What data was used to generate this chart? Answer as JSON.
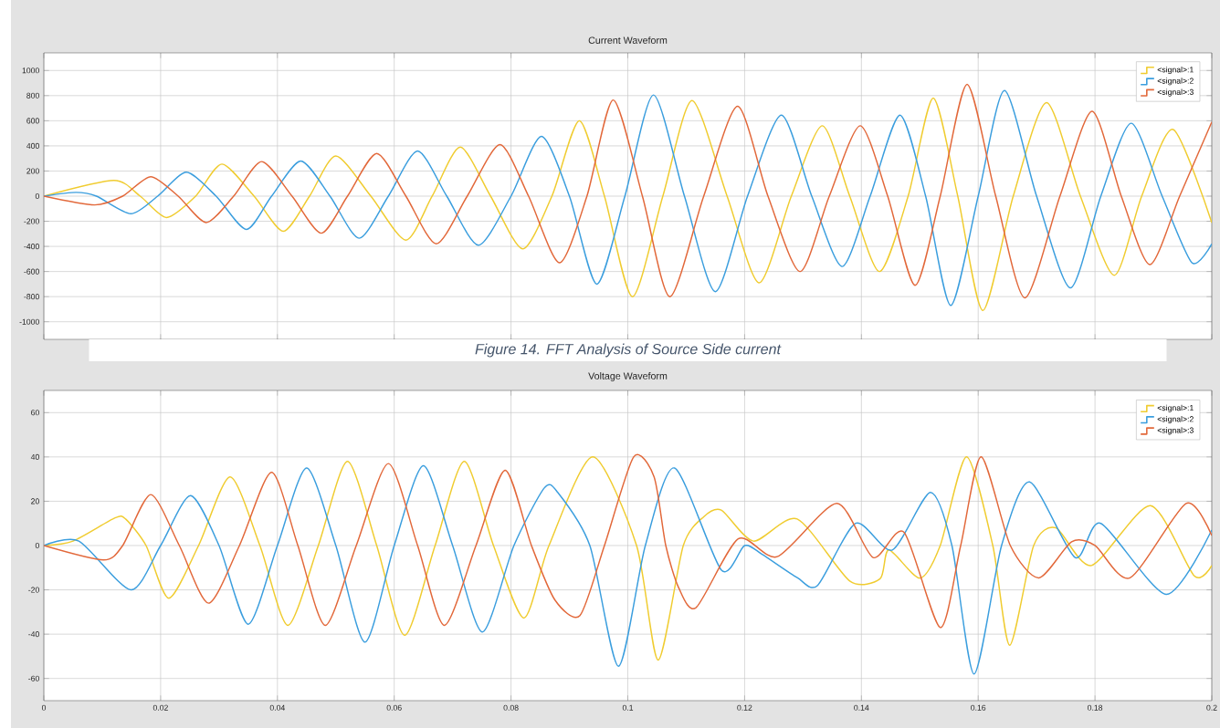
{
  "chart_data": [
    {
      "type": "line",
      "title": "Current Waveform",
      "xlim": [
        0,
        0.2
      ],
      "ylim": [
        -1140,
        1140
      ],
      "xticks": [
        0,
        0.02,
        0.04,
        0.06,
        0.08,
        0.1,
        0.12,
        0.14,
        0.16,
        0.18,
        0.2
      ],
      "yticks": [
        -1000,
        -800,
        -600,
        -400,
        -200,
        0,
        200,
        400,
        600,
        800,
        1000
      ],
      "grid": true,
      "legend": "top right",
      "tick_labels": "y",
      "series": [
        {
          "name": "<signal>:1",
          "color": "#f0cc30",
          "x": [
            0,
            0.012,
            0.0165,
            0.021,
            0.026,
            0.0305,
            0.036,
            0.041,
            0.0455,
            0.05,
            0.056,
            0.062,
            0.0665,
            0.0713,
            0.0765,
            0.082,
            0.087,
            0.0917,
            0.096,
            0.1008,
            0.106,
            0.111,
            0.117,
            0.1225,
            0.128,
            0.1333,
            0.138,
            0.1431,
            0.148,
            0.1523,
            0.1565,
            0.1608,
            0.166,
            0.1717,
            0.1775,
            0.1833,
            0.188,
            0.1934,
            0.2
          ],
          "values": [
            0,
            125,
            0,
            -170,
            0,
            255,
            0,
            -280,
            0,
            320,
            0,
            -350,
            0,
            390,
            0,
            -420,
            0,
            600,
            0,
            -800,
            0,
            760,
            0,
            -690,
            0,
            560,
            0,
            -600,
            0,
            780,
            0,
            -910,
            0,
            745,
            0,
            -630,
            0,
            530,
            -210
          ]
        },
        {
          "name": "<signal>:2",
          "color": "#3b9ede",
          "x": [
            0,
            0.0055,
            0.009,
            0.0149,
            0.0195,
            0.0244,
            0.0295,
            0.0347,
            0.039,
            0.044,
            0.049,
            0.054,
            0.059,
            0.064,
            0.069,
            0.0744,
            0.08,
            0.0852,
            0.09,
            0.0947,
            0.0995,
            0.1044,
            0.1097,
            0.115,
            0.1205,
            0.1263,
            0.1315,
            0.1367,
            0.1415,
            0.1466,
            0.151,
            0.1553,
            0.16,
            0.1645,
            0.17,
            0.1758,
            0.181,
            0.1862,
            0.1915,
            0.1966,
            0.2
          ],
          "values": [
            0,
            30,
            0,
            -140,
            0,
            190,
            0,
            -265,
            0,
            280,
            0,
            -335,
            0,
            360,
            0,
            -390,
            0,
            475,
            0,
            -700,
            0,
            805,
            0,
            -760,
            0,
            645,
            0,
            -560,
            0,
            645,
            0,
            -870,
            0,
            840,
            0,
            -730,
            0,
            580,
            0,
            -530,
            -380
          ]
        },
        {
          "name": "<signal>:3",
          "color": "#e2683a",
          "x": [
            0,
            0.0087,
            0.0135,
            0.0183,
            0.023,
            0.0278,
            0.0325,
            0.0373,
            0.0425,
            0.0475,
            0.052,
            0.057,
            0.062,
            0.0672,
            0.0725,
            0.0781,
            0.083,
            0.0883,
            0.093,
            0.0975,
            0.1025,
            0.1072,
            0.113,
            0.1188,
            0.124,
            0.1295,
            0.1345,
            0.1398,
            0.1445,
            0.1492,
            0.1535,
            0.1581,
            0.163,
            0.168,
            0.174,
            0.1795,
            0.1845,
            0.1894,
            0.1945,
            0.2
          ],
          "values": [
            0,
            -70,
            0,
            155,
            0,
            -210,
            0,
            275,
            0,
            -295,
            0,
            340,
            0,
            -380,
            0,
            410,
            0,
            -530,
            0,
            765,
            0,
            -800,
            0,
            715,
            0,
            -600,
            0,
            560,
            0,
            -710,
            0,
            890,
            0,
            -810,
            0,
            675,
            0,
            -545,
            0,
            590
          ]
        }
      ]
    },
    {
      "type": "line",
      "title": "Voltage Waveform",
      "xlim": [
        0,
        0.2
      ],
      "ylim": [
        -70,
        70
      ],
      "xticks": [
        0,
        0.02,
        0.04,
        0.06,
        0.08,
        0.1,
        0.12,
        0.14,
        0.16,
        0.18,
        0.2
      ],
      "yticks": [
        -60,
        -40,
        -20,
        0,
        20,
        40,
        60
      ],
      "grid": true,
      "legend": "top right",
      "annotations": [
        "Figure 14. FFT Analysis of Source Side current"
      ],
      "series": [
        {
          "name": "<signal>:1",
          "color": "#f0cc30",
          "x": [
            0,
            0.005,
            0.0122,
            0.014,
            0.0175,
            0.0214,
            0.0265,
            0.0319,
            0.037,
            0.0418,
            0.047,
            0.052,
            0.057,
            0.0618,
            0.067,
            0.072,
            0.077,
            0.0822,
            0.0865,
            0.094,
            0.1015,
            0.1052,
            0.1095,
            0.113,
            0.116,
            0.1215,
            0.129,
            0.138,
            0.1432,
            0.1447,
            0.15,
            0.1535,
            0.158,
            0.1625,
            0.1654,
            0.1695,
            0.1733,
            0.1794,
            0.1895,
            0.197,
            0.2
          ],
          "values": [
            0,
            2,
            12.5,
            12,
            0,
            -23.8,
            0,
            31,
            0,
            -36,
            0,
            38,
            0,
            -40.5,
            0,
            38,
            0,
            -32.7,
            0,
            40,
            0,
            -51.7,
            0,
            13,
            16,
            2,
            12,
            -16,
            -15,
            -2,
            -14.7,
            0,
            40,
            0,
            -45,
            0,
            8,
            -9,
            18,
            -13.7,
            -9
          ]
        },
        {
          "name": "<signal>:2",
          "color": "#3b9ede",
          "x": [
            0,
            0.006,
            0.0149,
            0.02,
            0.0251,
            0.03,
            0.035,
            0.04,
            0.045,
            0.05,
            0.055,
            0.06,
            0.065,
            0.07,
            0.0751,
            0.0805,
            0.0857,
            0.088,
            0.0935,
            0.0984,
            0.103,
            0.108,
            0.116,
            0.12,
            0.123,
            0.129,
            0.1325,
            0.139,
            0.1453,
            0.1518,
            0.1555,
            0.1593,
            0.164,
            0.1688,
            0.1766,
            0.181,
            0.1922,
            0.2
          ],
          "values": [
            0,
            2,
            -20,
            0,
            22.5,
            0,
            -35.5,
            0,
            35,
            0,
            -43.6,
            0,
            36,
            0,
            -39,
            0,
            26,
            24,
            0,
            -54.5,
            0,
            35,
            -11,
            0,
            -4,
            -14.5,
            -18,
            10,
            -2,
            24,
            0,
            -58,
            0,
            28.7,
            -5.4,
            10,
            -22,
            7
          ]
        },
        {
          "name": "<signal>:3",
          "color": "#e2683a",
          "x": [
            0,
            0.0102,
            0.0135,
            0.0183,
            0.0232,
            0.0282,
            0.0335,
            0.039,
            0.0435,
            0.0482,
            0.0535,
            0.059,
            0.064,
            0.0686,
            0.074,
            0.079,
            0.0835,
            0.0875,
            0.0918,
            0.096,
            0.101,
            0.1045,
            0.1065,
            0.1087,
            0.1117,
            0.1189,
            0.1256,
            0.1358,
            0.142,
            0.1473,
            0.1535,
            0.157,
            0.1605,
            0.1655,
            0.1704,
            0.176,
            0.18,
            0.186,
            0.1956,
            0.2
          ],
          "values": [
            0,
            -6.5,
            0,
            23,
            0,
            -26,
            0,
            33,
            0,
            -36,
            0,
            37,
            0,
            -36,
            0,
            34,
            0,
            -24.5,
            -31.6,
            0,
            40,
            31,
            0,
            -19,
            -28,
            3,
            -5,
            19,
            -5.4,
            6,
            -37,
            0,
            40,
            0,
            -14.6,
            1.7,
            0,
            -14.6,
            19,
            4.5
          ]
        }
      ]
    }
  ]
}
